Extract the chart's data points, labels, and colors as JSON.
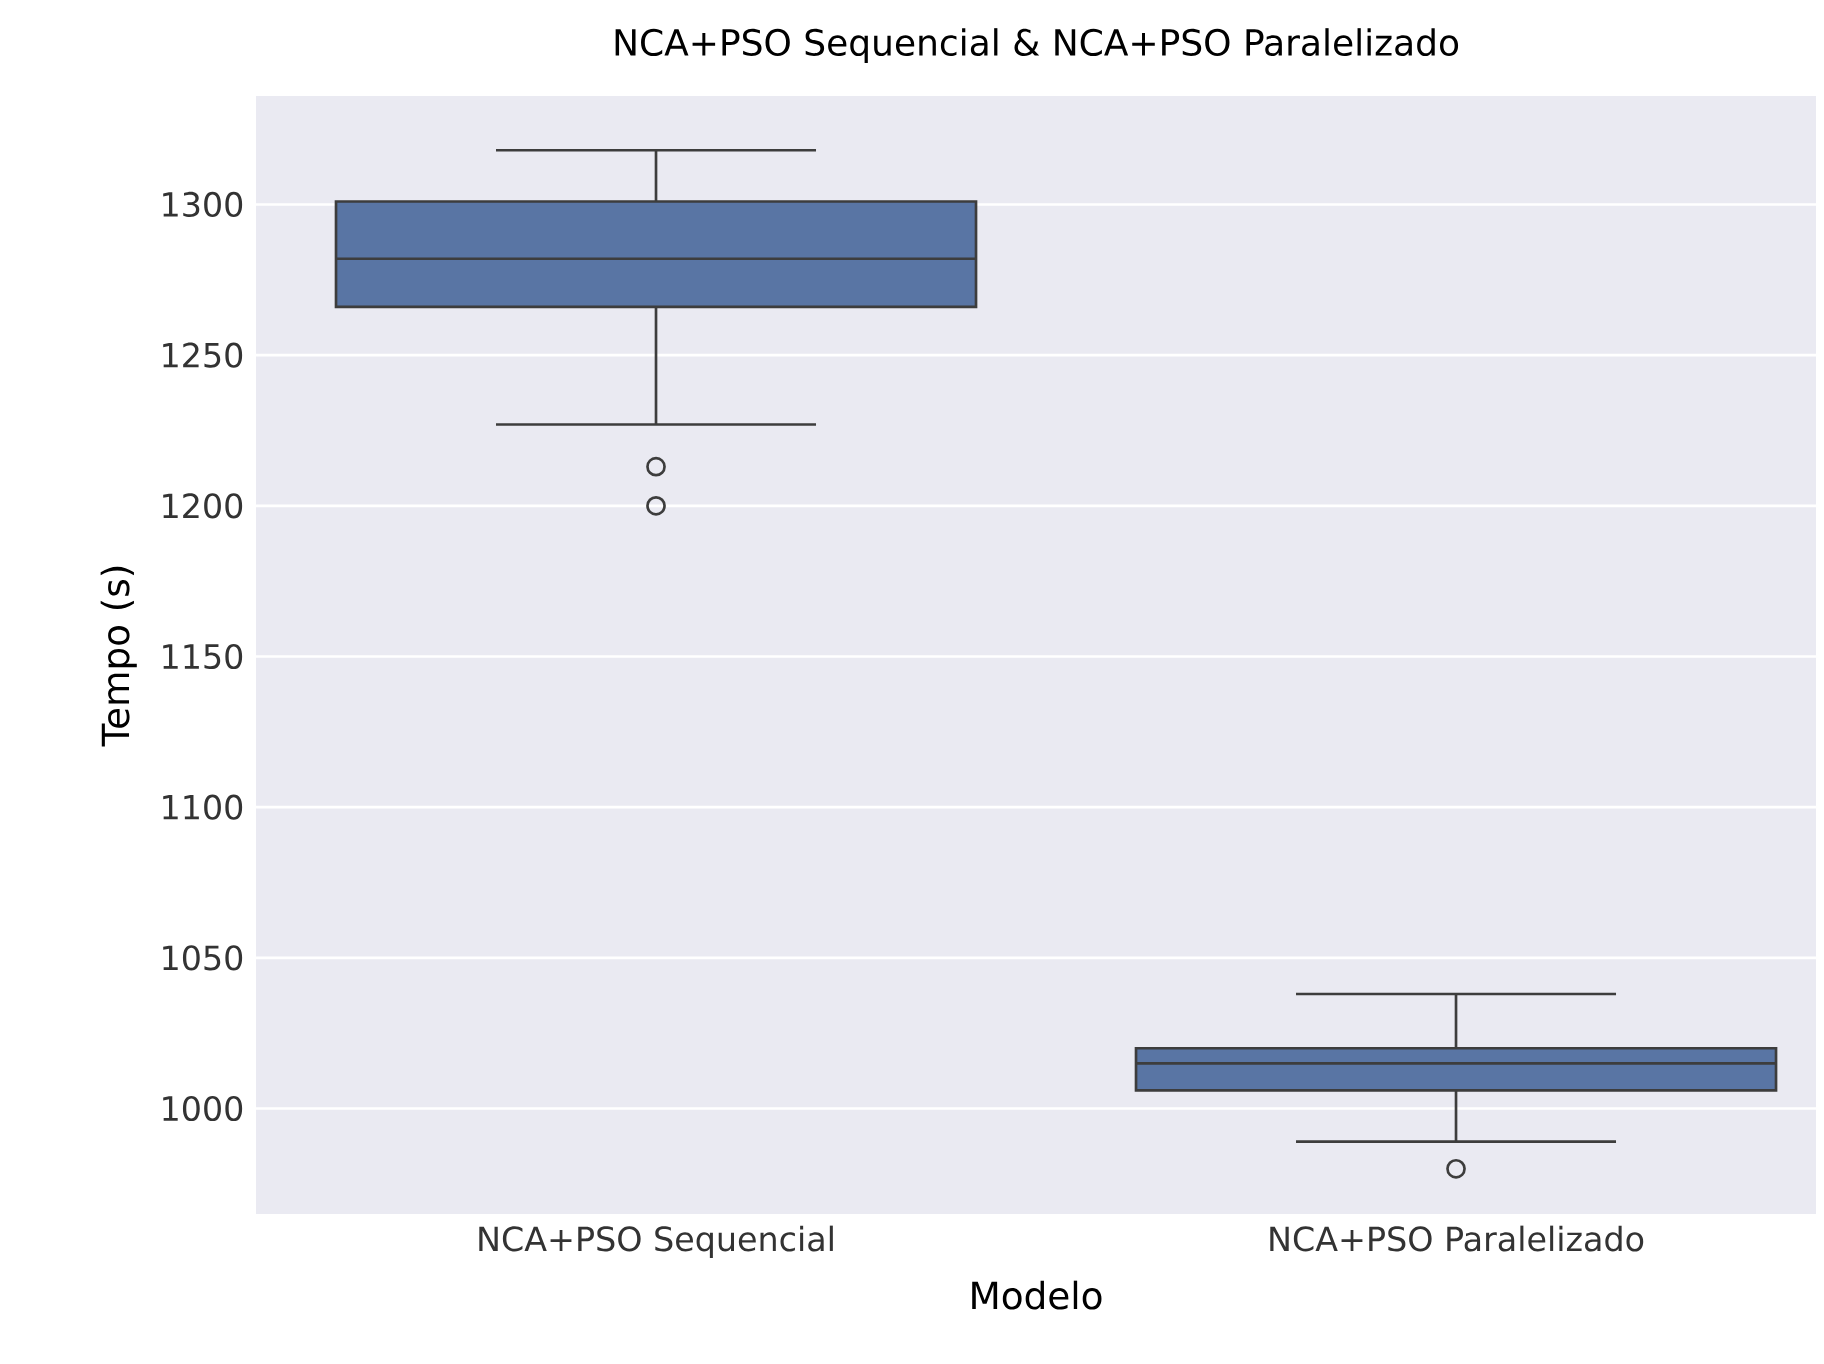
{
  "chart_data": {
    "type": "box",
    "title": "NCA+PSO Sequencial & NCA+PSO Paralelizado",
    "xlabel": "Modelo",
    "ylabel": "Tempo (s)",
    "categories": [
      "NCA+PSO Sequencial",
      "NCA+PSO Paralelizado"
    ],
    "color": "#5975a4",
    "boxes": [
      {
        "low": 1227,
        "q1": 1266,
        "median": 1282,
        "q3": 1301,
        "high": 1318,
        "outliers": [
          1213,
          1200
        ]
      },
      {
        "low": 989,
        "q1": 1006,
        "median": 1015,
        "q3": 1020,
        "high": 1038,
        "outliers": [
          980
        ]
      }
    ],
    "ylim": [
      965,
      1336
    ],
    "yticks": [
      1000,
      1050,
      1100,
      1150,
      1200,
      1250,
      1300
    ],
    "grid": "y"
  }
}
